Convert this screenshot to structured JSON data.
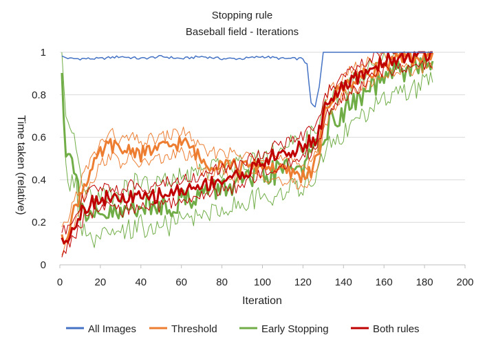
{
  "chart_data": {
    "type": "line",
    "title": "Stopping rule",
    "subtitle": "Baseball field - Iterations",
    "xlabel": "Iteration",
    "ylabel": "Time taken (relative)",
    "xlim": [
      0,
      200
    ],
    "ylim": [
      0,
      1
    ],
    "xticks": [
      "0",
      "20",
      "40",
      "60",
      "80",
      "100",
      "120",
      "140",
      "160",
      "180",
      "200"
    ],
    "yticks": [
      "0",
      "0.2",
      "0.4",
      "0.6",
      "0.8",
      "1"
    ],
    "grid": "horizontal",
    "legend_position": "bottom",
    "series": [
      {
        "name": "All Images",
        "color": "#4472C4",
        "band": false,
        "points": [
          [
            1,
            0.98
          ],
          [
            5,
            0.97
          ],
          [
            10,
            0.97
          ],
          [
            20,
            0.97
          ],
          [
            30,
            0.98
          ],
          [
            40,
            0.97
          ],
          [
            50,
            0.98
          ],
          [
            60,
            0.97
          ],
          [
            70,
            0.98
          ],
          [
            80,
            0.97
          ],
          [
            90,
            0.97
          ],
          [
            100,
            0.98
          ],
          [
            110,
            0.97
          ],
          [
            120,
            0.97
          ],
          [
            122,
            0.94
          ],
          [
            124,
            0.76
          ],
          [
            126,
            0.74
          ],
          [
            128,
            0.84
          ],
          [
            130,
            1.0
          ],
          [
            140,
            1.0
          ],
          [
            160,
            1.0
          ],
          [
            184,
            1.0
          ]
        ]
      },
      {
        "name": "Threshold",
        "color": "#ED7D31",
        "band": true,
        "points": [
          [
            1,
            0.11
          ],
          [
            3,
            0.13
          ],
          [
            5,
            0.2
          ],
          [
            8,
            0.28
          ],
          [
            12,
            0.38
          ],
          [
            16,
            0.45
          ],
          [
            20,
            0.52
          ],
          [
            25,
            0.57
          ],
          [
            30,
            0.53
          ],
          [
            35,
            0.55
          ],
          [
            40,
            0.52
          ],
          [
            45,
            0.54
          ],
          [
            50,
            0.55
          ],
          [
            55,
            0.56
          ],
          [
            60,
            0.58
          ],
          [
            65,
            0.55
          ],
          [
            70,
            0.49
          ],
          [
            75,
            0.47
          ],
          [
            80,
            0.49
          ],
          [
            85,
            0.47
          ],
          [
            90,
            0.46
          ],
          [
            95,
            0.46
          ],
          [
            100,
            0.47
          ],
          [
            105,
            0.46
          ],
          [
            110,
            0.44
          ],
          [
            115,
            0.43
          ],
          [
            120,
            0.42
          ],
          [
            124,
            0.44
          ],
          [
            127,
            0.5
          ],
          [
            129,
            0.6
          ],
          [
            131,
            0.72
          ],
          [
            135,
            0.79
          ],
          [
            140,
            0.84
          ],
          [
            145,
            0.87
          ],
          [
            150,
            0.89
          ],
          [
            155,
            0.92
          ],
          [
            160,
            0.94
          ],
          [
            165,
            0.96
          ],
          [
            170,
            0.97
          ],
          [
            175,
            0.97
          ],
          [
            180,
            0.98
          ],
          [
            184,
            0.99
          ]
        ]
      },
      {
        "name": "Early Stopping",
        "color": "#70AD47",
        "band": true,
        "points": [
          [
            1,
            0.95
          ],
          [
            2,
            0.7
          ],
          [
            3,
            0.55
          ],
          [
            5,
            0.49
          ],
          [
            8,
            0.48
          ],
          [
            10,
            0.3
          ],
          [
            12,
            0.25
          ],
          [
            15,
            0.2
          ],
          [
            20,
            0.22
          ],
          [
            25,
            0.24
          ],
          [
            30,
            0.23
          ],
          [
            35,
            0.27
          ],
          [
            40,
            0.29
          ],
          [
            45,
            0.26
          ],
          [
            50,
            0.29
          ],
          [
            55,
            0.28
          ],
          [
            60,
            0.31
          ],
          [
            65,
            0.32
          ],
          [
            70,
            0.34
          ],
          [
            75,
            0.35
          ],
          [
            80,
            0.36
          ],
          [
            85,
            0.38
          ],
          [
            90,
            0.39
          ],
          [
            95,
            0.4
          ],
          [
            100,
            0.42
          ],
          [
            105,
            0.43
          ],
          [
            110,
            0.45
          ],
          [
            115,
            0.46
          ],
          [
            120,
            0.47
          ],
          [
            124,
            0.5
          ],
          [
            127,
            0.55
          ],
          [
            130,
            0.62
          ],
          [
            135,
            0.68
          ],
          [
            140,
            0.72
          ],
          [
            145,
            0.76
          ],
          [
            150,
            0.8
          ],
          [
            155,
            0.84
          ],
          [
            160,
            0.87
          ],
          [
            165,
            0.9
          ],
          [
            170,
            0.92
          ],
          [
            175,
            0.93
          ],
          [
            180,
            0.95
          ],
          [
            184,
            0.96
          ]
        ]
      },
      {
        "name": "Both rules",
        "color": "#C00000",
        "band": true,
        "points": [
          [
            1,
            0.1
          ],
          [
            3,
            0.12
          ],
          [
            5,
            0.16
          ],
          [
            8,
            0.2
          ],
          [
            10,
            0.24
          ],
          [
            12,
            0.27
          ],
          [
            15,
            0.29
          ],
          [
            20,
            0.31
          ],
          [
            25,
            0.32
          ],
          [
            30,
            0.3
          ],
          [
            35,
            0.32
          ],
          [
            40,
            0.31
          ],
          [
            45,
            0.32
          ],
          [
            50,
            0.33
          ],
          [
            55,
            0.34
          ],
          [
            60,
            0.35
          ],
          [
            65,
            0.36
          ],
          [
            70,
            0.37
          ],
          [
            75,
            0.39
          ],
          [
            80,
            0.4
          ],
          [
            85,
            0.41
          ],
          [
            90,
            0.43
          ],
          [
            95,
            0.45
          ],
          [
            100,
            0.48
          ],
          [
            105,
            0.51
          ],
          [
            110,
            0.52
          ],
          [
            115,
            0.53
          ],
          [
            120,
            0.56
          ],
          [
            124,
            0.58
          ],
          [
            127,
            0.6
          ],
          [
            129,
            0.66
          ],
          [
            131,
            0.75
          ],
          [
            135,
            0.8
          ],
          [
            140,
            0.83
          ],
          [
            145,
            0.87
          ],
          [
            150,
            0.9
          ],
          [
            155,
            0.93
          ],
          [
            160,
            0.96
          ],
          [
            165,
            0.97
          ],
          [
            170,
            0.98
          ],
          [
            175,
            0.98
          ],
          [
            180,
            0.99
          ],
          [
            184,
            0.99
          ]
        ]
      }
    ]
  }
}
